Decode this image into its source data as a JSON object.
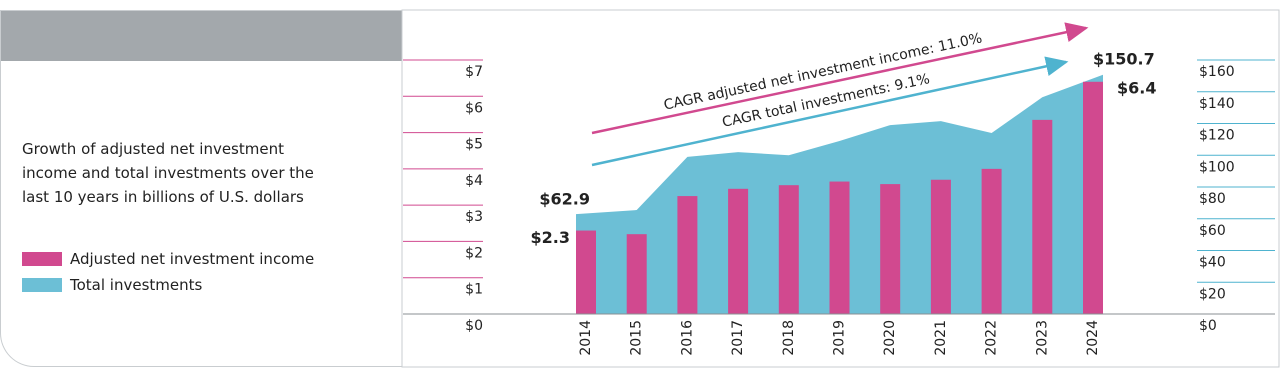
{
  "chart_data": {
    "type": "bar",
    "title": "Growth of adjusted net investment income and total investments over the last 10 years in billions of U.S. dollars",
    "categories": [
      "2014",
      "2015",
      "2016",
      "2017",
      "2018",
      "2019",
      "2020",
      "2021",
      "2022",
      "2023",
      "2024"
    ],
    "series": [
      {
        "name": "Adjusted net investment income",
        "type": "bar",
        "color": "#d1498f",
        "values": [
          2.3,
          2.2,
          3.25,
          3.45,
          3.55,
          3.65,
          3.58,
          3.7,
          4.0,
          5.35,
          6.4
        ],
        "value_labels": [
          "$2.3",
          null,
          null,
          null,
          null,
          null,
          null,
          null,
          null,
          null,
          "$6.4"
        ]
      },
      {
        "name": "Total investments",
        "type": "area",
        "axis": "y2",
        "color": "#6cbfd6",
        "values": [
          62.9,
          65.5,
          99,
          102,
          100,
          109,
          119,
          121.5,
          114,
          136.5,
          150.7
        ],
        "value_labels": [
          "$62.9",
          null,
          null,
          null,
          null,
          null,
          null,
          null,
          null,
          null,
          "$150.7"
        ]
      }
    ],
    "ylim": [
      0,
      7
    ],
    "yticks": [
      {
        "value": 0,
        "label": "$0"
      },
      {
        "value": 1,
        "label": "$1"
      },
      {
        "value": 2,
        "label": "$2"
      },
      {
        "value": 3,
        "label": "$3"
      },
      {
        "value": 4,
        "label": "$4"
      },
      {
        "value": 5,
        "label": "$5"
      },
      {
        "value": 6,
        "label": "$6"
      },
      {
        "value": 7,
        "label": "$7"
      }
    ],
    "y2lim": [
      0,
      160
    ],
    "y2ticks": [
      {
        "value": 0,
        "label": "$0"
      },
      {
        "value": 20,
        "label": "$20"
      },
      {
        "value": 40,
        "label": "$40"
      },
      {
        "value": 60,
        "label": "$60"
      },
      {
        "value": 80,
        "label": "$80"
      },
      {
        "value": 100,
        "label": "$100"
      },
      {
        "value": 120,
        "label": "$120"
      },
      {
        "value": 140,
        "label": "$140"
      },
      {
        "value": 160,
        "label": "$160"
      }
    ],
    "annotations": [
      "CAGR adjusted net investment income: 11.0%",
      "CAGR total investments: 9.1%"
    ]
  }
}
